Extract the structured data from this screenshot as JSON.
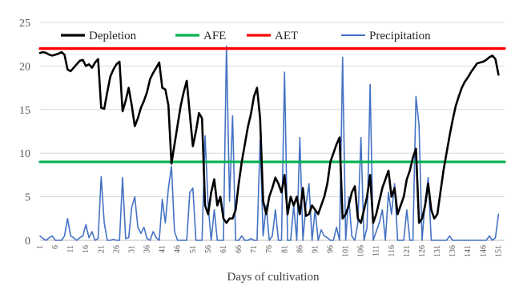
{
  "chart_data": {
    "type": "line",
    "title": "",
    "xlabel": "Days of cultivation",
    "ylabel": "",
    "ylim": [
      0,
      25
    ],
    "yticks": [
      0,
      5,
      10,
      15,
      20,
      25
    ],
    "xlim": [
      1,
      153
    ],
    "xticks": [
      "1",
      "6",
      "11",
      "16",
      "21",
      "26",
      "31",
      "36",
      "41",
      "46",
      "51",
      "56",
      "61",
      "66",
      "71",
      "76",
      "81",
      "86",
      "91",
      "96",
      "101",
      "106",
      "111",
      "116",
      "121",
      "126",
      "131",
      "136",
      "141",
      "146",
      "151"
    ],
    "legend_position": "top",
    "grid": "horizontal",
    "series": [
      {
        "name": "Depletion",
        "color": "#000000",
        "style": "line",
        "points": [
          [
            1,
            21.5
          ],
          [
            2,
            21.6
          ],
          [
            3,
            21.5
          ],
          [
            4,
            21.3
          ],
          [
            5,
            21.2
          ],
          [
            6,
            21.3
          ],
          [
            7,
            21.4
          ],
          [
            8,
            21.6
          ],
          [
            9,
            21.3
          ],
          [
            10,
            19.6
          ],
          [
            11,
            19.4
          ],
          [
            12,
            19.8
          ],
          [
            13,
            20.2
          ],
          [
            14,
            20.6
          ],
          [
            15,
            20.7
          ],
          [
            16,
            20.0
          ],
          [
            17,
            20.2
          ],
          [
            18,
            19.8
          ],
          [
            19,
            20.4
          ],
          [
            20,
            20.8
          ],
          [
            21,
            15.2
          ],
          [
            22,
            15.1
          ],
          [
            23,
            17.0
          ],
          [
            24,
            18.8
          ],
          [
            25,
            19.6
          ],
          [
            26,
            20.2
          ],
          [
            27,
            20.5
          ],
          [
            28,
            14.8
          ],
          [
            29,
            16.0
          ],
          [
            30,
            17.5
          ],
          [
            31,
            15.5
          ],
          [
            32,
            13.1
          ],
          [
            33,
            14.0
          ],
          [
            34,
            15.2
          ],
          [
            35,
            16.0
          ],
          [
            36,
            17.0
          ],
          [
            37,
            18.5
          ],
          [
            38,
            19.2
          ],
          [
            39,
            19.8
          ],
          [
            40,
            20.4
          ],
          [
            41,
            17.5
          ],
          [
            42,
            17.3
          ],
          [
            43,
            15.5
          ],
          [
            44,
            8.8
          ],
          [
            45,
            11.0
          ],
          [
            46,
            13.2
          ],
          [
            47,
            15.4
          ],
          [
            48,
            17.0
          ],
          [
            49,
            18.3
          ],
          [
            50,
            14.5
          ],
          [
            51,
            10.8
          ],
          [
            52,
            12.5
          ],
          [
            53,
            14.6
          ],
          [
            54,
            14.0
          ],
          [
            55,
            4.0
          ],
          [
            56,
            3.0
          ],
          [
            57,
            5.5
          ],
          [
            58,
            7.0
          ],
          [
            59,
            4.0
          ],
          [
            60,
            5.0
          ],
          [
            61,
            2.5
          ],
          [
            62,
            2.0
          ],
          [
            63,
            2.5
          ],
          [
            64,
            2.5
          ],
          [
            65,
            3.5
          ],
          [
            66,
            6.5
          ],
          [
            67,
            9.0
          ],
          [
            68,
            11.0
          ],
          [
            69,
            13.0
          ],
          [
            70,
            14.5
          ],
          [
            71,
            16.5
          ],
          [
            72,
            17.5
          ],
          [
            73,
            14.0
          ],
          [
            74,
            4.5
          ],
          [
            75,
            3.0
          ],
          [
            76,
            5.0
          ],
          [
            77,
            6.0
          ],
          [
            78,
            7.2
          ],
          [
            79,
            6.5
          ],
          [
            80,
            5.5
          ],
          [
            81,
            7.5
          ],
          [
            82,
            3.0
          ],
          [
            83,
            5.0
          ],
          [
            84,
            4.0
          ],
          [
            85,
            5.0
          ],
          [
            86,
            3.0
          ],
          [
            87,
            6.0
          ],
          [
            88,
            2.8
          ],
          [
            89,
            3.0
          ],
          [
            90,
            4.0
          ],
          [
            91,
            3.5
          ],
          [
            92,
            3.0
          ],
          [
            93,
            4.0
          ],
          [
            94,
            5.0
          ],
          [
            95,
            6.5
          ],
          [
            96,
            9.0
          ],
          [
            97,
            10.0
          ],
          [
            98,
            11.0
          ],
          [
            99,
            11.8
          ],
          [
            100,
            2.5
          ],
          [
            101,
            3.0
          ],
          [
            102,
            4.0
          ],
          [
            103,
            5.5
          ],
          [
            104,
            6.2
          ],
          [
            105,
            2.5
          ],
          [
            106,
            2.0
          ],
          [
            107,
            3.5
          ],
          [
            108,
            5.0
          ],
          [
            109,
            7.5
          ],
          [
            110,
            2.0
          ],
          [
            111,
            3.0
          ],
          [
            112,
            4.5
          ],
          [
            113,
            6.0
          ],
          [
            114,
            7.0
          ],
          [
            115,
            8.0
          ],
          [
            116,
            5.0
          ],
          [
            117,
            6.0
          ],
          [
            118,
            3.0
          ],
          [
            119,
            4.0
          ],
          [
            120,
            5.0
          ],
          [
            121,
            7.0
          ],
          [
            122,
            8.0
          ],
          [
            123,
            9.5
          ],
          [
            124,
            10.5
          ],
          [
            125,
            2.0
          ],
          [
            126,
            2.5
          ],
          [
            127,
            4.0
          ],
          [
            128,
            6.5
          ],
          [
            129,
            3.5
          ],
          [
            130,
            2.5
          ],
          [
            131,
            3.0
          ],
          [
            132,
            5.5
          ],
          [
            133,
            8.0
          ],
          [
            134,
            10.0
          ],
          [
            135,
            12.0
          ],
          [
            136,
            13.8
          ],
          [
            137,
            15.4
          ],
          [
            138,
            16.5
          ],
          [
            139,
            17.5
          ],
          [
            140,
            18.2
          ],
          [
            141,
            18.7
          ],
          [
            142,
            19.3
          ],
          [
            143,
            19.8
          ],
          [
            144,
            20.3
          ],
          [
            145,
            20.4
          ],
          [
            146,
            20.5
          ],
          [
            147,
            20.7
          ],
          [
            148,
            21.0
          ],
          [
            149,
            21.2
          ],
          [
            150,
            20.8
          ],
          [
            151,
            19.0
          ]
        ]
      },
      {
        "name": "AFE",
        "color": "#00b050",
        "style": "line",
        "points": [
          [
            1,
            9.0
          ],
          [
            153,
            9.0
          ]
        ]
      },
      {
        "name": "AET",
        "color": "#ff0000",
        "style": "line",
        "points": [
          [
            1,
            22.0
          ],
          [
            153,
            22.0
          ]
        ]
      },
      {
        "name": "Precipitation",
        "color": "#4472c4",
        "style": "line",
        "points": [
          [
            1,
            0.5
          ],
          [
            2,
            0.2
          ],
          [
            3,
            0.0
          ],
          [
            4,
            0.3
          ],
          [
            5,
            0.5
          ],
          [
            6,
            0.0
          ],
          [
            7,
            0.0
          ],
          [
            8,
            0.0
          ],
          [
            9,
            0.5
          ],
          [
            10,
            2.5
          ],
          [
            11,
            0.5
          ],
          [
            12,
            0.3
          ],
          [
            13,
            0.0
          ],
          [
            14,
            0.3
          ],
          [
            15,
            0.5
          ],
          [
            16,
            1.8
          ],
          [
            17,
            0.3
          ],
          [
            18,
            1.0
          ],
          [
            19,
            0.0
          ],
          [
            20,
            0.2
          ],
          [
            21,
            7.3
          ],
          [
            22,
            2.0
          ],
          [
            23,
            0.0
          ],
          [
            24,
            0.0
          ],
          [
            25,
            0.1
          ],
          [
            26,
            0.0
          ],
          [
            27,
            0.0
          ],
          [
            28,
            7.2
          ],
          [
            29,
            0.2
          ],
          [
            30,
            0.3
          ],
          [
            31,
            3.8
          ],
          [
            32,
            5.0
          ],
          [
            33,
            1.5
          ],
          [
            34,
            0.8
          ],
          [
            35,
            1.5
          ],
          [
            36,
            0.2
          ],
          [
            37,
            0.0
          ],
          [
            38,
            1.0
          ],
          [
            39,
            0.3
          ],
          [
            40,
            0.0
          ],
          [
            41,
            4.7
          ],
          [
            42,
            2.0
          ],
          [
            43,
            6.0
          ],
          [
            44,
            8.5
          ],
          [
            45,
            1.0
          ],
          [
            46,
            0.0
          ],
          [
            47,
            0.0
          ],
          [
            48,
            0.0
          ],
          [
            49,
            0.0
          ],
          [
            50,
            5.5
          ],
          [
            51,
            6.0
          ],
          [
            52,
            0.0
          ],
          [
            53,
            0.0
          ],
          [
            54,
            0.0
          ],
          [
            55,
            12.0
          ],
          [
            56,
            4.0
          ],
          [
            57,
            0.0
          ],
          [
            58,
            3.5
          ],
          [
            59,
            0.0
          ],
          [
            60,
            0.0
          ],
          [
            61,
            0.0
          ],
          [
            62,
            22.3
          ],
          [
            63,
            4.5
          ],
          [
            64,
            14.3
          ],
          [
            65,
            0.0
          ],
          [
            66,
            0.0
          ],
          [
            67,
            0.5
          ],
          [
            68,
            0.0
          ],
          [
            69,
            0.0
          ],
          [
            70,
            0.2
          ],
          [
            71,
            0.0
          ],
          [
            72,
            0.0
          ],
          [
            73,
            11.5
          ],
          [
            74,
            0.5
          ],
          [
            75,
            4.0
          ],
          [
            76,
            0.0
          ],
          [
            77,
            0.5
          ],
          [
            78,
            3.5
          ],
          [
            79,
            0.0
          ],
          [
            80,
            0.0
          ],
          [
            81,
            19.3
          ],
          [
            82,
            0.0
          ],
          [
            83,
            0.0
          ],
          [
            84,
            4.0
          ],
          [
            85,
            0.0
          ],
          [
            86,
            11.8
          ],
          [
            87,
            0.0
          ],
          [
            88,
            4.0
          ],
          [
            89,
            6.5
          ],
          [
            90,
            0.0
          ],
          [
            91,
            3.5
          ],
          [
            92,
            0.0
          ],
          [
            93,
            1.2
          ],
          [
            94,
            0.5
          ],
          [
            95,
            0.3
          ],
          [
            96,
            0.0
          ],
          [
            97,
            0.0
          ],
          [
            98,
            1.5
          ],
          [
            99,
            0.0
          ],
          [
            100,
            21.0
          ],
          [
            101,
            0.0
          ],
          [
            102,
            5.0
          ],
          [
            103,
            0.5
          ],
          [
            104,
            0.0
          ],
          [
            105,
            2.0
          ],
          [
            106,
            11.8
          ],
          [
            107,
            0.0
          ],
          [
            108,
            1.5
          ],
          [
            109,
            17.9
          ],
          [
            110,
            0.0
          ],
          [
            111,
            1.0
          ],
          [
            112,
            2.0
          ],
          [
            113,
            3.5
          ],
          [
            114,
            0.0
          ],
          [
            115,
            5.5
          ],
          [
            116,
            3.0
          ],
          [
            117,
            6.5
          ],
          [
            118,
            0.0
          ],
          [
            119,
            0.0
          ],
          [
            120,
            0.0
          ],
          [
            121,
            3.5
          ],
          [
            122,
            0.0
          ],
          [
            123,
            0.0
          ],
          [
            124,
            16.5
          ],
          [
            125,
            13.2
          ],
          [
            126,
            0.0
          ],
          [
            127,
            4.5
          ],
          [
            128,
            7.2
          ],
          [
            129,
            0.0
          ],
          [
            130,
            0.0
          ],
          [
            131,
            0.0
          ],
          [
            132,
            0.0
          ],
          [
            133,
            0.0
          ],
          [
            134,
            0.0
          ],
          [
            135,
            0.5
          ],
          [
            136,
            0.0
          ],
          [
            137,
            0.0
          ],
          [
            138,
            0.0
          ],
          [
            139,
            0.0
          ],
          [
            140,
            0.0
          ],
          [
            141,
            0.0
          ],
          [
            142,
            0.0
          ],
          [
            143,
            0.0
          ],
          [
            144,
            0.0
          ],
          [
            145,
            0.0
          ],
          [
            146,
            0.0
          ],
          [
            147,
            0.0
          ],
          [
            148,
            0.5
          ],
          [
            149,
            0.0
          ],
          [
            150,
            0.3
          ],
          [
            151,
            3.0
          ]
        ]
      }
    ]
  }
}
